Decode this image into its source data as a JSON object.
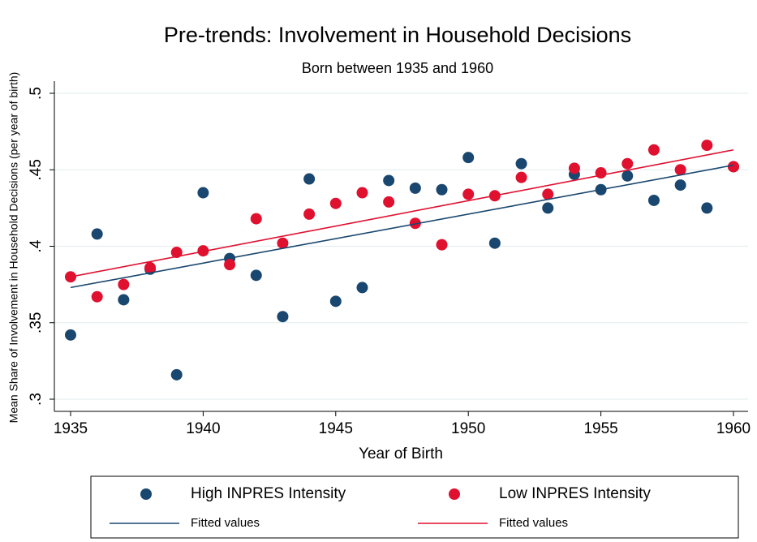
{
  "chart_data": {
    "type": "scatter",
    "title": "Pre-trends: Involvement in Household Decisions",
    "subtitle": "Born between 1935 and 1960",
    "x_label": "Year of Birth",
    "y_label": "Mean Share of Involvement in Household Decisions (per year of birth)",
    "xlim": [
      1935,
      1960
    ],
    "xticks": [
      1935,
      1940,
      1945,
      1950,
      1955,
      1960
    ],
    "ylim": [
      0.3,
      0.5
    ],
    "yticks": [
      {
        "value": 0.3,
        "label": ".3"
      },
      {
        "value": 0.35,
        "label": ".35"
      },
      {
        "value": 0.4,
        "label": ".4"
      },
      {
        "value": 0.45,
        "label": ".45"
      },
      {
        "value": 0.5,
        "label": ".5"
      }
    ],
    "grid": true,
    "series": [
      {
        "name": "High INPRES Intensity",
        "kind": "scatter",
        "color": "#1a476f",
        "x": [
          1935,
          1936,
          1937,
          1938,
          1939,
          1940,
          1941,
          1942,
          1943,
          1944,
          1945,
          1946,
          1947,
          1948,
          1949,
          1950,
          1951,
          1952,
          1953,
          1954,
          1955,
          1956,
          1957,
          1958,
          1959,
          1960
        ],
        "values": [
          0.342,
          0.408,
          0.365,
          0.385,
          0.316,
          0.435,
          0.392,
          0.381,
          0.354,
          0.444,
          0.364,
          0.373,
          0.443,
          0.438,
          0.437,
          0.458,
          0.402,
          0.454,
          0.425,
          0.447,
          0.437,
          0.446,
          0.43,
          0.44,
          0.425,
          0.452
        ]
      },
      {
        "name": "Low INPRES Intensity",
        "kind": "scatter",
        "color": "#e0102f",
        "x": [
          1935,
          1936,
          1937,
          1938,
          1939,
          1940,
          1941,
          1942,
          1943,
          1944,
          1945,
          1946,
          1947,
          1948,
          1949,
          1950,
          1951,
          1952,
          1953,
          1954,
          1955,
          1956,
          1957,
          1958,
          1959,
          1960
        ],
        "values": [
          0.38,
          0.367,
          0.375,
          0.386,
          0.396,
          0.397,
          0.388,
          0.418,
          0.402,
          0.421,
          0.428,
          0.435,
          0.429,
          0.415,
          0.401,
          0.434,
          0.433,
          0.445,
          0.434,
          0.451,
          0.448,
          0.454,
          0.463,
          0.45,
          0.466,
          0.452
        ]
      },
      {
        "name": "Fitted values",
        "kind": "line",
        "color": "#1a476f",
        "x": [
          1935,
          1960
        ],
        "values": [
          0.373,
          0.453
        ]
      },
      {
        "name": "Fitted values",
        "kind": "line",
        "color": "#e0102f",
        "x": [
          1935,
          1960
        ],
        "values": [
          0.38,
          0.463
        ]
      }
    ]
  }
}
